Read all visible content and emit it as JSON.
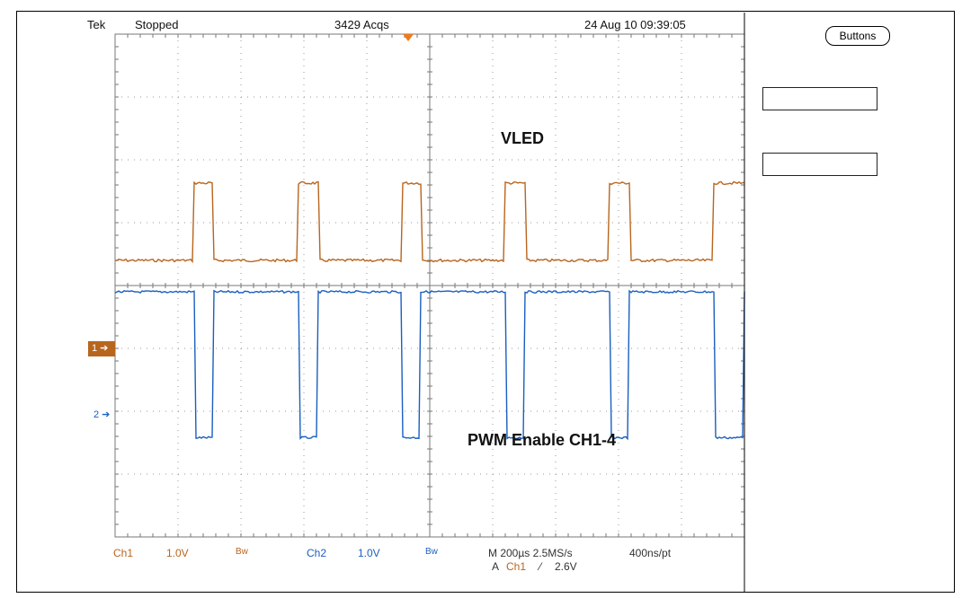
{
  "header": {
    "brand": "Tek",
    "run_state": "Stopped",
    "acquisitions": "3429 Acqs",
    "timestamp": "24 Aug 10 09:39:05"
  },
  "side_panel": {
    "buttons_label": "Buttons"
  },
  "annotations": {
    "vled": "VLED",
    "pwm": "PWM  Enable CH1-4"
  },
  "markers": {
    "ch1": "1",
    "ch2": "2"
  },
  "footer": {
    "ch1_label": "Ch1",
    "ch1_scale": "1.0V",
    "ch1_bw": "Bw",
    "ch2_label": "Ch2",
    "ch2_scale": "1.0V",
    "ch2_bw": "Bw",
    "timebase": "M 200µs 2.5MS/s",
    "record": "400ns/pt",
    "trigger_prefix": "A",
    "trigger_source": "Ch1",
    "trigger_slope": "⁄",
    "trigger_level": "2.6V"
  },
  "colors": {
    "ch1": "#b8651e",
    "ch2": "#1a5fbf",
    "grid": "#9a9a9a",
    "trigger_marker": "#f07a1a"
  },
  "waveforms": {
    "divisions_x": 10,
    "divisions_y": 8,
    "ch1_pulses": [
      {
        "start_div": 1.25,
        "end_div": 1.57
      },
      {
        "start_div": 2.9,
        "end_div": 3.23
      },
      {
        "start_div": 4.55,
        "end_div": 4.87
      },
      {
        "start_div": 6.2,
        "end_div": 6.52
      },
      {
        "start_div": 7.85,
        "end_div": 8.18
      },
      {
        "start_div": 9.5,
        "end_div": 10.0
      }
    ],
    "ch1_low_div": 3.6,
    "ch1_high_div": 2.37,
    "ch2_high_div": 4.1,
    "ch2_low_div": 6.42
  }
}
